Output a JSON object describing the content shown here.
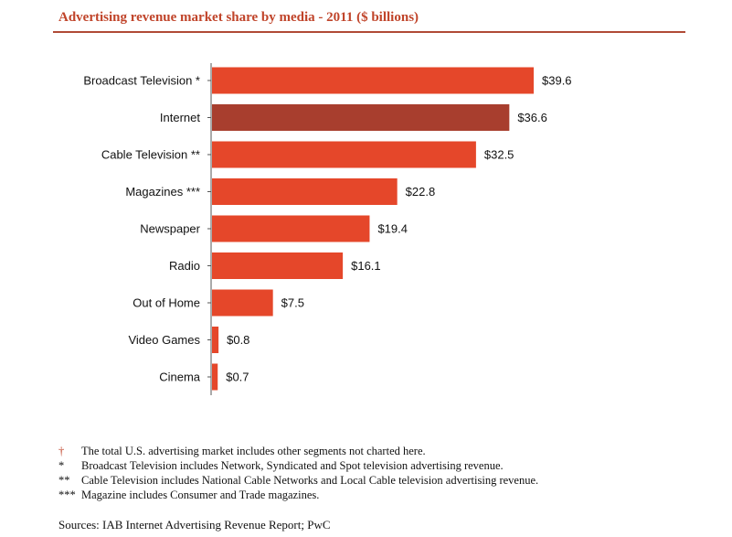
{
  "title": "Advertising revenue market share by media - 2011 ($ billions)",
  "colors": {
    "bar": "#e5472a",
    "highlight_bar": "#a83e2e",
    "title": "#c0442a",
    "axis": "#555555",
    "rule": "#b04a36"
  },
  "chart_data": {
    "type": "bar",
    "orientation": "horizontal",
    "title": "Advertising revenue market share by media - 2011 ($ billions)",
    "categories": [
      "Broadcast Television *",
      "Internet",
      "Cable Television **",
      "Magazines ***",
      "Newspaper",
      "Radio",
      "Out of Home",
      "Video Games",
      "Cinema"
    ],
    "values": [
      39.6,
      36.6,
      32.5,
      22.8,
      19.4,
      16.1,
      7.5,
      0.8,
      0.7
    ],
    "value_labels": [
      "$39.6",
      "$36.6",
      "$32.5",
      "$22.8",
      "$19.4",
      "$16.1",
      "$7.5",
      "$0.8",
      "$0.7"
    ],
    "highlight_category": "Internet",
    "xlim": [
      0,
      39.6
    ],
    "xlabel": "",
    "ylabel": "",
    "grid": false
  },
  "notes": [
    {
      "mark": "†",
      "text": "The total U.S. advertising market includes other segments not charted here."
    },
    {
      "mark": "*",
      "text": "Broadcast Television includes Network, Syndicated and Spot television advertising revenue."
    },
    {
      "mark": "**",
      "text": "Cable Television includes National Cable Networks and Local Cable television advertising revenue."
    },
    {
      "mark": "***",
      "text": "Magazine includes Consumer and Trade magazines."
    }
  ],
  "sources": "Sources: IAB Internet Advertising Revenue Report; PwC"
}
